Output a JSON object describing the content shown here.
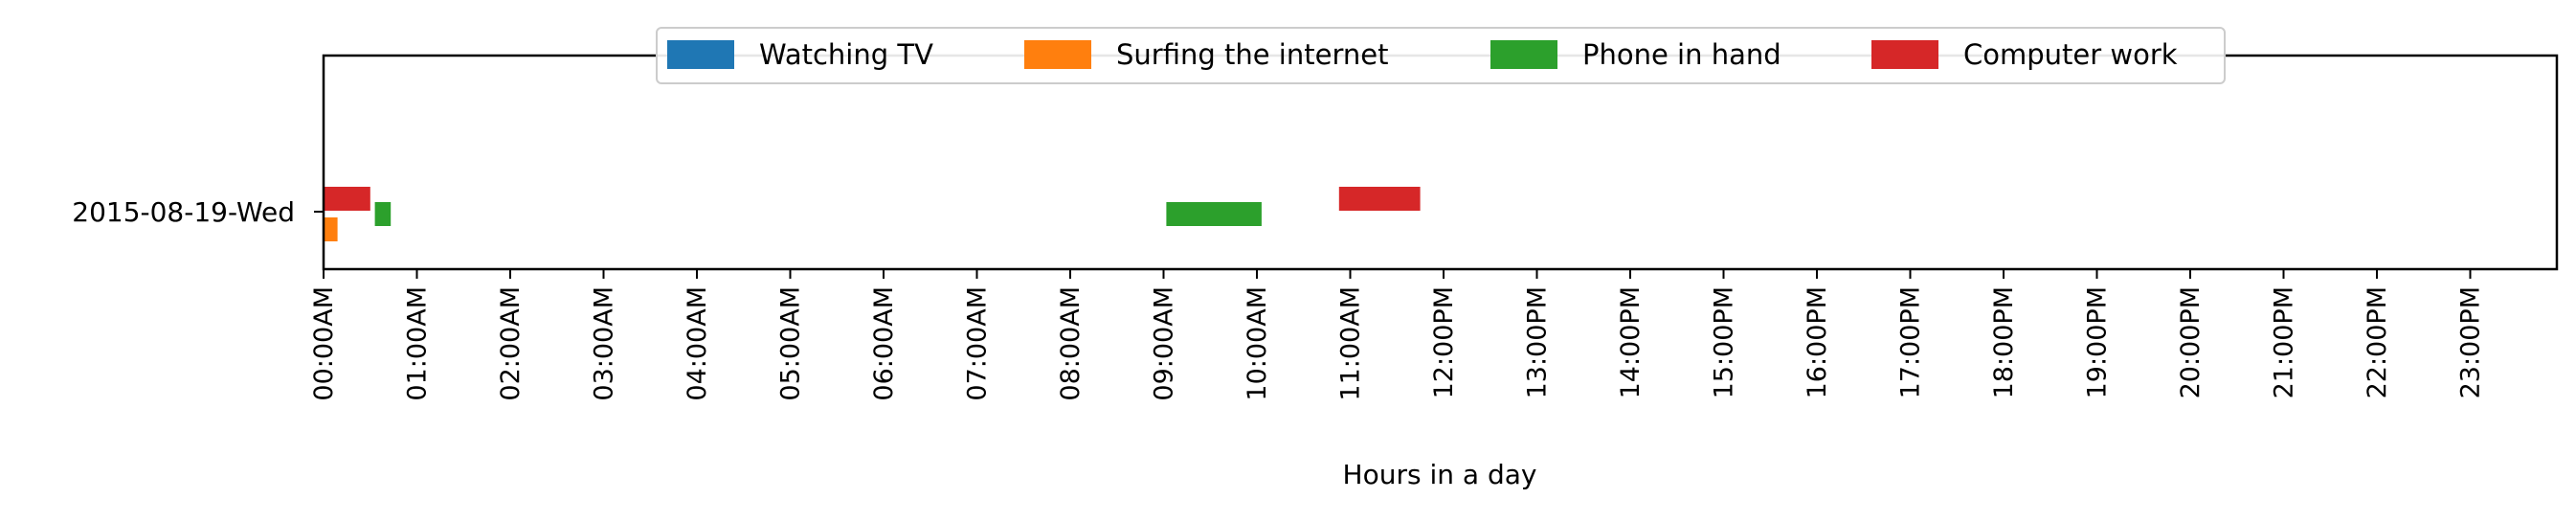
{
  "chart_data": {
    "type": "bar",
    "orientation": "horizontal-timeline",
    "title": "",
    "xlabel": "Hours in a day",
    "ylabel": "",
    "categories": [
      "2015-08-19-Wed"
    ],
    "xlim": [
      0,
      24
    ],
    "x_ticks": [
      {
        "value": 0,
        "label": "00:00AM"
      },
      {
        "value": 1,
        "label": "01:00AM"
      },
      {
        "value": 2,
        "label": "02:00AM"
      },
      {
        "value": 3,
        "label": "03:00AM"
      },
      {
        "value": 4,
        "label": "04:00AM"
      },
      {
        "value": 5,
        "label": "05:00AM"
      },
      {
        "value": 6,
        "label": "06:00AM"
      },
      {
        "value": 7,
        "label": "07:00AM"
      },
      {
        "value": 8,
        "label": "08:00AM"
      },
      {
        "value": 9,
        "label": "09:00AM"
      },
      {
        "value": 10,
        "label": "10:00AM"
      },
      {
        "value": 11,
        "label": "11:00AM"
      },
      {
        "value": 12,
        "label": "12:00PM"
      },
      {
        "value": 13,
        "label": "13:00PM"
      },
      {
        "value": 14,
        "label": "14:00PM"
      },
      {
        "value": 15,
        "label": "15:00PM"
      },
      {
        "value": 16,
        "label": "16:00PM"
      },
      {
        "value": 17,
        "label": "17:00PM"
      },
      {
        "value": 18,
        "label": "18:00PM"
      },
      {
        "value": 19,
        "label": "19:00PM"
      },
      {
        "value": 20,
        "label": "20:00PM"
      },
      {
        "value": 21,
        "label": "21:00PM"
      },
      {
        "value": 22,
        "label": "22:00PM"
      },
      {
        "value": 23,
        "label": "23:00PM"
      }
    ],
    "legend_position": "top-center",
    "grid": false,
    "series": [
      {
        "name": "Watching TV",
        "color": "#1f77b4",
        "intervals": []
      },
      {
        "name": "Surfing the internet",
        "color": "#ff7f0e",
        "intervals": [
          {
            "category": "2015-08-19-Wed",
            "start": 0.0,
            "end": 0.15
          }
        ]
      },
      {
        "name": "Phone in hand",
        "color": "#2ca02c",
        "intervals": [
          {
            "category": "2015-08-19-Wed",
            "start": 0.55,
            "end": 0.72
          },
          {
            "category": "2015-08-19-Wed",
            "start": 9.03,
            "end": 10.05
          }
        ]
      },
      {
        "name": "Computer work",
        "color": "#d62728",
        "intervals": [
          {
            "category": "2015-08-19-Wed",
            "start": 0.0,
            "end": 0.5
          },
          {
            "category": "2015-08-19-Wed",
            "start": 10.88,
            "end": 11.75
          }
        ]
      }
    ]
  }
}
